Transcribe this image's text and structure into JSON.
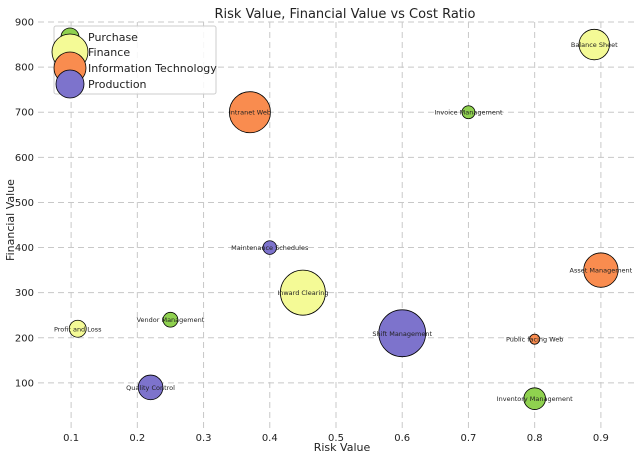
{
  "chart_data": {
    "type": "scatter",
    "title": "Risk Value, Financial Value vs Cost Ratio",
    "xlabel": "Risk Value",
    "ylabel": "Financial Value",
    "xlim": [
      0.05,
      0.95
    ],
    "ylim": [
      0,
      900
    ],
    "x_ticks": [
      0.1,
      0.2,
      0.3,
      0.4,
      0.5,
      0.6,
      0.7,
      0.8,
      0.9
    ],
    "x_tick_labels": [
      "0.1",
      "0.2",
      "0.3",
      "0.4",
      "0.5",
      "0.6",
      "0.7",
      "0.8",
      "0.9"
    ],
    "y_ticks": [
      100,
      200,
      300,
      400,
      500,
      600,
      700,
      800,
      900
    ],
    "y_tick_labels": [
      "100",
      "200",
      "300",
      "400",
      "500",
      "600",
      "700",
      "800",
      "900"
    ],
    "grid": true,
    "legend_position": "top-left",
    "size_meaning": "Cost Ratio",
    "series": [
      {
        "name": "Purchase",
        "color": "#8fd14f",
        "points": [
          {
            "label": "Invoice Management",
            "x": 0.7,
            "y": 700,
            "size": 1
          },
          {
            "label": "Vendor Management",
            "x": 0.25,
            "y": 240,
            "size": 1.3
          },
          {
            "label": "Inventory Management",
            "x": 0.8,
            "y": 65,
            "size": 2.8
          }
        ]
      },
      {
        "name": "Finance",
        "color": "#f4fa96",
        "points": [
          {
            "label": "Balance Sheet",
            "x": 0.89,
            "y": 850,
            "size": 5.5
          },
          {
            "label": "Inward Clearing",
            "x": 0.45,
            "y": 300,
            "size": 12
          },
          {
            "label": "Profit and Loss",
            "x": 0.11,
            "y": 220,
            "size": 1.7
          }
        ]
      },
      {
        "name": "Information Technology",
        "color": "#f98c4f",
        "points": [
          {
            "label": "Intranet Web",
            "x": 0.37,
            "y": 700,
            "size": 10
          },
          {
            "label": "Asset Management",
            "x": 0.9,
            "y": 350,
            "size": 7
          },
          {
            "label": "Public facing Web",
            "x": 0.8,
            "y": 197,
            "size": 0.6
          }
        ]
      },
      {
        "name": "Production",
        "color": "#7d73cc",
        "points": [
          {
            "label": "Maintenance Schedules",
            "x": 0.4,
            "y": 400,
            "size": 1.1
          },
          {
            "label": "Shift Management",
            "x": 0.6,
            "y": 210,
            "size": 13
          },
          {
            "label": "Quality Control",
            "x": 0.22,
            "y": 90,
            "size": 3.6
          }
        ]
      }
    ],
    "legend": [
      {
        "name": "Purchase",
        "color": "#8fd14f"
      },
      {
        "name": "Finance",
        "color": "#f4fa96"
      },
      {
        "name": "Information Technology",
        "color": "#f98c4f"
      },
      {
        "name": "Production",
        "color": "#7d73cc"
      }
    ]
  }
}
